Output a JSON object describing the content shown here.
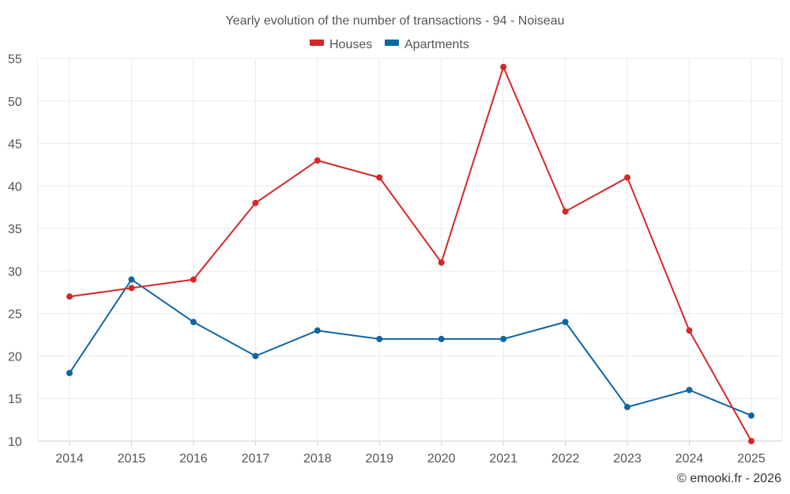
{
  "chart_data": {
    "type": "line",
    "title": "Yearly evolution of the number of transactions - 94 - Noiseau",
    "xlabel": "",
    "ylabel": "",
    "categories": [
      "2014",
      "2015",
      "2016",
      "2017",
      "2018",
      "2019",
      "2020",
      "2021",
      "2022",
      "2023",
      "2024",
      "2025"
    ],
    "ylim": [
      10,
      55
    ],
    "yticks": [
      10,
      15,
      20,
      25,
      30,
      35,
      40,
      45,
      50,
      55
    ],
    "grid": true,
    "legend_position": "top-center",
    "series": [
      {
        "name": "Houses",
        "color": "#d62728",
        "values": [
          27,
          28,
          29,
          38,
          43,
          41,
          31,
          54,
          37,
          41,
          23,
          10
        ]
      },
      {
        "name": "Apartments",
        "color": "#0f67a0",
        "values": [
          18,
          29,
          24,
          20,
          23,
          22,
          22,
          22,
          24,
          14,
          16,
          13
        ]
      }
    ]
  },
  "credit": "© emooki.fr - 2026"
}
